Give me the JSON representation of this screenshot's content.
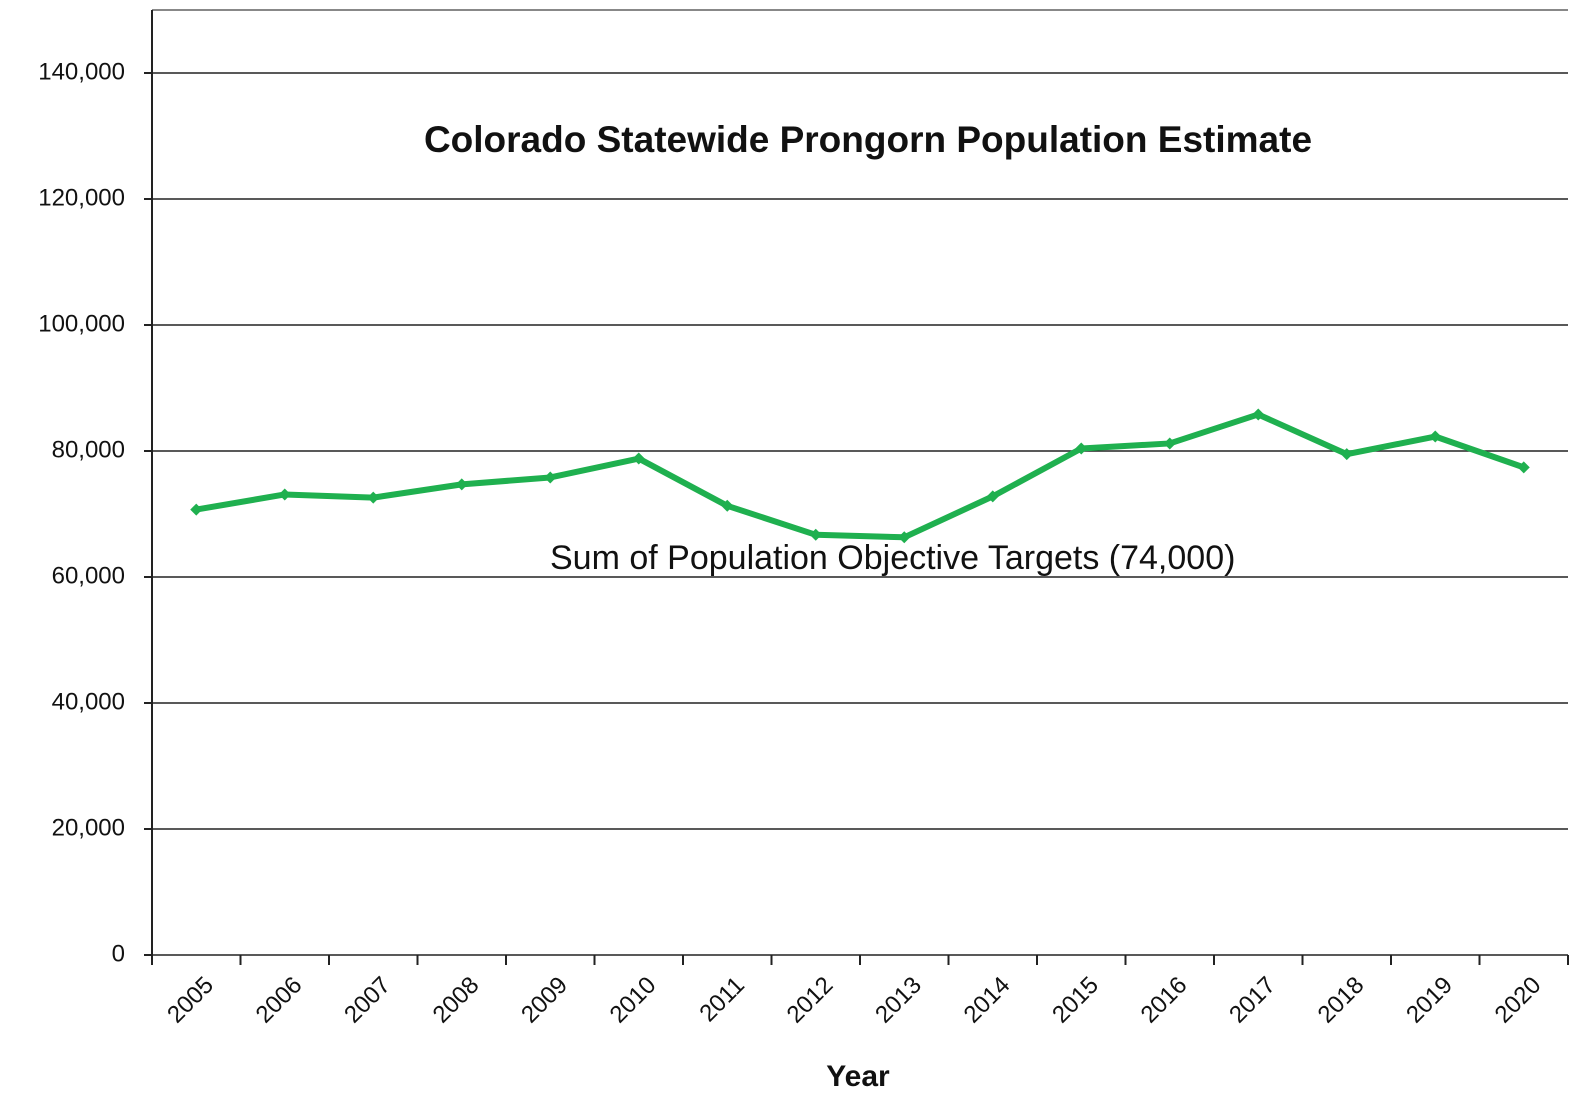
{
  "chart_data": {
    "type": "line",
    "title": "Colorado Statewide Prongorn Population Estimate",
    "x_label": "Year",
    "annotation": "Sum of  Population Objective Targets (74,000)",
    "categories": [
      "2005",
      "2006",
      "2007",
      "2008",
      "2009",
      "2010",
      "2011",
      "2012",
      "2013",
      "2014",
      "2015",
      "2016",
      "2017",
      "2018",
      "2019",
      "2020"
    ],
    "values": [
      70700,
      73100,
      72600,
      74700,
      75800,
      78800,
      71300,
      66700,
      66300,
      72800,
      80400,
      81200,
      85800,
      79500,
      82300,
      77400
    ],
    "color": "#1fb04f",
    "ylim": [
      0,
      150000
    ],
    "yticks": [
      0,
      {
        "value": 20000,
        "label": "20,000"
      },
      {
        "value": 40000,
        "label": "40,000"
      },
      {
        "value": 60000,
        "label": "60,000"
      },
      {
        "value": 80000,
        "label": "80,000"
      },
      {
        "value": 100000,
        "label": "100,000"
      },
      {
        "value": 120000,
        "label": "120,000"
      },
      {
        "value": 140000,
        "label": "140,000"
      }
    ],
    "grid": true
  }
}
